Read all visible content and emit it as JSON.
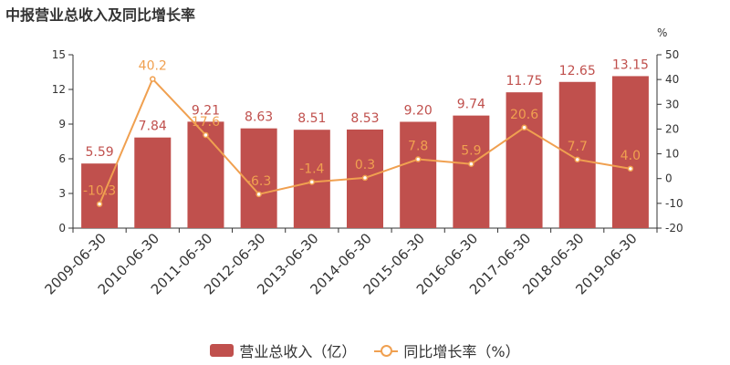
{
  "title": "中报营业总收入及同比增长率",
  "unit_right": "%",
  "legend": {
    "bar_label": "营业总收入（亿）",
    "line_label": "同比增长率（%）"
  },
  "colors": {
    "bar": "#c0504d",
    "line": "#f0a050"
  },
  "chart_data": {
    "type": "bar",
    "title": "中报营业总收入及同比增长率",
    "categories": [
      "2009-06-30",
      "2010-06-30",
      "2011-06-30",
      "2012-06-30",
      "2013-06-30",
      "2014-06-30",
      "2015-06-30",
      "2016-06-30",
      "2017-06-30",
      "2018-06-30",
      "2019-06-30"
    ],
    "series": [
      {
        "name": "营业总收入（亿）",
        "type": "bar",
        "axis": "left",
        "values": [
          5.59,
          7.84,
          9.21,
          8.63,
          8.51,
          8.53,
          9.2,
          9.74,
          11.75,
          12.65,
          13.15
        ],
        "labels": [
          "5.59",
          "7.84",
          "9.21",
          "8.63",
          "8.51",
          "8.53",
          "9.20",
          "9.74",
          "11.75",
          "12.65",
          "13.15"
        ]
      },
      {
        "name": "同比增长率（%）",
        "type": "line",
        "axis": "right",
        "values": [
          -10.3,
          40.2,
          17.6,
          -6.3,
          -1.4,
          0.3,
          7.8,
          5.9,
          20.6,
          7.7,
          4.0
        ],
        "labels": [
          "-10.3",
          "40.2",
          "17.6",
          "-6.3",
          "-1.4",
          "0.3",
          "7.8",
          "5.9",
          "20.6",
          "7.7",
          "4.0"
        ]
      }
    ],
    "y_left": {
      "ylim": [
        0,
        15
      ],
      "ticks": [
        "0",
        "3",
        "6",
        "9",
        "12",
        "15"
      ]
    },
    "y_right": {
      "ylim": [
        -20,
        50
      ],
      "ticks": [
        "-20",
        "-10",
        "0",
        "10",
        "20",
        "30",
        "40",
        "50"
      ]
    },
    "grid": false,
    "legend_position": "bottom"
  }
}
